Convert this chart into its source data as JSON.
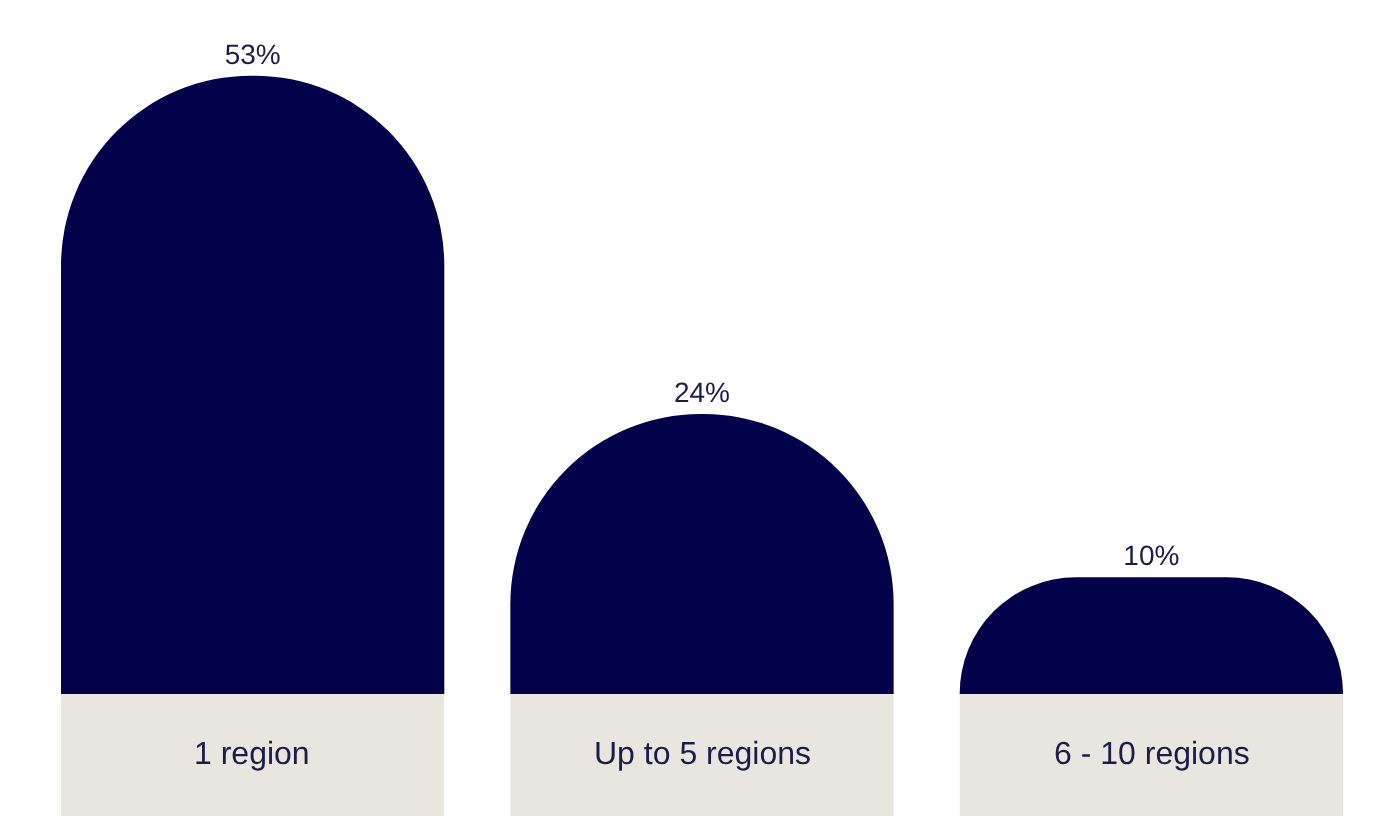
{
  "chart_data": {
    "type": "bar",
    "categories": [
      "1 region",
      "Up to 5 regions",
      "6 - 10 regions"
    ],
    "values": [
      53,
      24,
      10
    ],
    "value_labels": [
      "53%",
      "24%",
      "10%"
    ],
    "color": "#02024a"
  }
}
